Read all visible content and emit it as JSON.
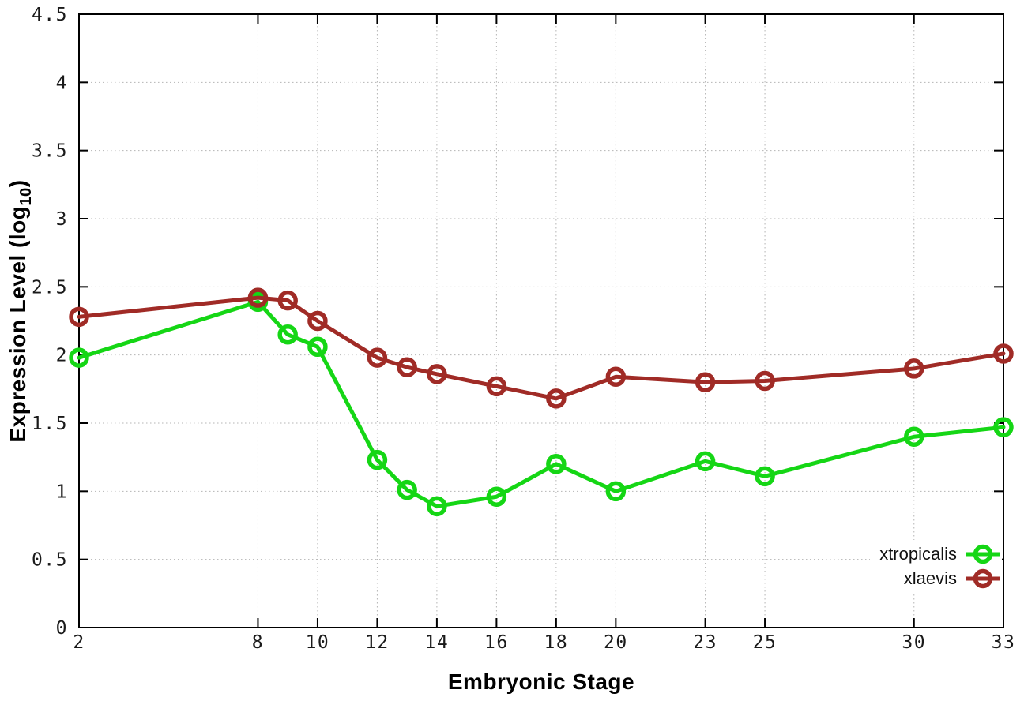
{
  "labels": {
    "xlabel": "Embryonic Stage",
    "ylabel_main": "Expression Level (log",
    "ylabel_sub": "10",
    "ylabel_close": ")"
  },
  "axis": {
    "x_tick_labels": [
      "2",
      "8",
      "10",
      "12",
      "14",
      "16",
      "18",
      "20",
      "23",
      "25",
      "30",
      "33"
    ],
    "y_tick_labels": [
      "0",
      "0.5",
      "1",
      "1.5",
      "2",
      "2.5",
      "3",
      "3.5",
      "4",
      "4.5"
    ]
  },
  "style": {
    "border_color": "#000000",
    "grid_color": "#b4b4b4",
    "tick_label_color": "#1a1a1a"
  },
  "chart_data": {
    "type": "line",
    "title": "",
    "xlabel": "Embryonic Stage",
    "ylabel": "Expression Level (log10)",
    "xlim": [
      2,
      33
    ],
    "ylim": [
      0,
      4.5
    ],
    "grid": true,
    "legend_position": "bottom-right",
    "x_ticks": [
      2,
      8,
      10,
      12,
      14,
      16,
      18,
      20,
      23,
      25,
      30,
      33
    ],
    "y_ticks": [
      0,
      0.5,
      1,
      1.5,
      2,
      2.5,
      3,
      3.5,
      4,
      4.5
    ],
    "x": [
      2,
      8,
      9,
      10,
      12,
      13,
      14,
      16,
      18,
      20,
      23,
      25,
      30,
      33
    ],
    "series": [
      {
        "name": "xtropicalis",
        "color": "#15d615",
        "values": [
          1.98,
          2.39,
          2.15,
          2.06,
          1.23,
          1.01,
          0.89,
          0.96,
          1.2,
          1.0,
          1.22,
          1.11,
          1.4,
          1.47
        ]
      },
      {
        "name": "xlaevis",
        "color": "#a02b26",
        "values": [
          2.28,
          2.42,
          2.4,
          2.25,
          1.98,
          1.91,
          1.86,
          1.77,
          1.68,
          1.84,
          1.8,
          1.81,
          1.9,
          2.01
        ]
      }
    ]
  }
}
